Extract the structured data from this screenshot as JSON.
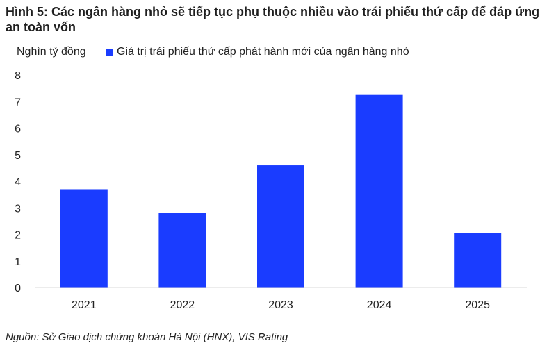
{
  "title": "Hình 5: Các ngân hàng nhỏ sẽ tiếp tục phụ thuộc nhiều vào trái phiếu thứ cấp để đáp ứng an toàn vốn",
  "source": "Nguồn: Sở Giao dịch chứng khoán Hà Nội (HNX), VIS Rating",
  "colors": {
    "bar": "#1a3cff"
  },
  "chart_data": {
    "type": "bar",
    "title": "Hình 5: Các ngân hàng nhỏ sẽ tiếp tục phụ thuộc nhiều vào trái phiếu thứ cấp để đáp ứng an toàn vốn",
    "ylabel": "Nghìn tỷ đồng",
    "xlabel": "",
    "categories": [
      "2021",
      "2022",
      "2023",
      "2024",
      "2025"
    ],
    "series": [
      {
        "name": "Giá trị trái phiếu thứ cấp phát hành mới của ngân hàng nhỏ",
        "values": [
          3.7,
          2.8,
          4.6,
          7.25,
          2.05
        ]
      }
    ],
    "ylim": [
      0,
      8
    ],
    "yticks": [
      "0",
      "1",
      "2",
      "3",
      "4",
      "5",
      "6",
      "7",
      "8"
    ],
    "grid": false,
    "legend": "top"
  }
}
